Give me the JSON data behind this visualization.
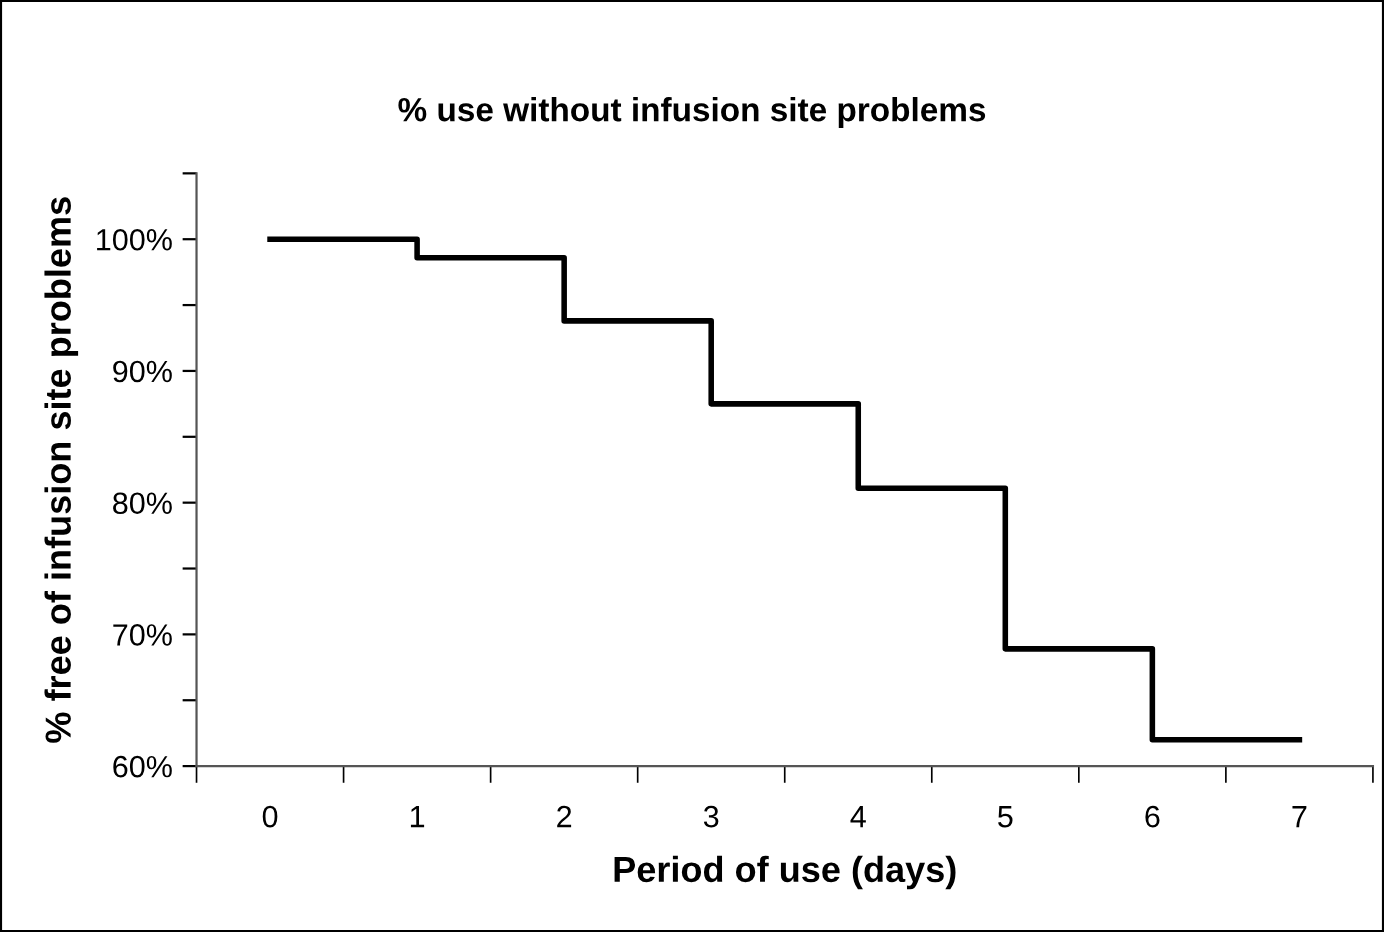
{
  "chart_data": {
    "type": "step",
    "title": "% use without infusion site problems",
    "xlabel": "Period of use (days)",
    "ylabel": "% free of infusion site problems",
    "categories": [
      "0",
      "1",
      "2",
      "3",
      "4",
      "5",
      "6",
      "7"
    ],
    "series": [
      {
        "color": "#000000",
        "values": [
          100,
          98.6,
          93.8,
          87.5,
          81.1,
          68.9,
          62.0,
          62.0
        ]
      }
    ],
    "ylim": [
      60,
      105
    ],
    "yticks": [
      {
        "value": 60,
        "label": "60%"
      },
      {
        "value": 65,
        "label": null
      },
      {
        "value": 70,
        "label": "70%"
      },
      {
        "value": 75,
        "label": null
      },
      {
        "value": 80,
        "label": "80%"
      },
      {
        "value": 85,
        "label": null
      },
      {
        "value": 90,
        "label": "90%"
      },
      {
        "value": 95,
        "label": null
      },
      {
        "value": 100,
        "label": "100%"
      },
      {
        "value": 105,
        "label": null
      }
    ],
    "grid": false,
    "legend": false,
    "marker": "none",
    "line_style": "solid"
  }
}
